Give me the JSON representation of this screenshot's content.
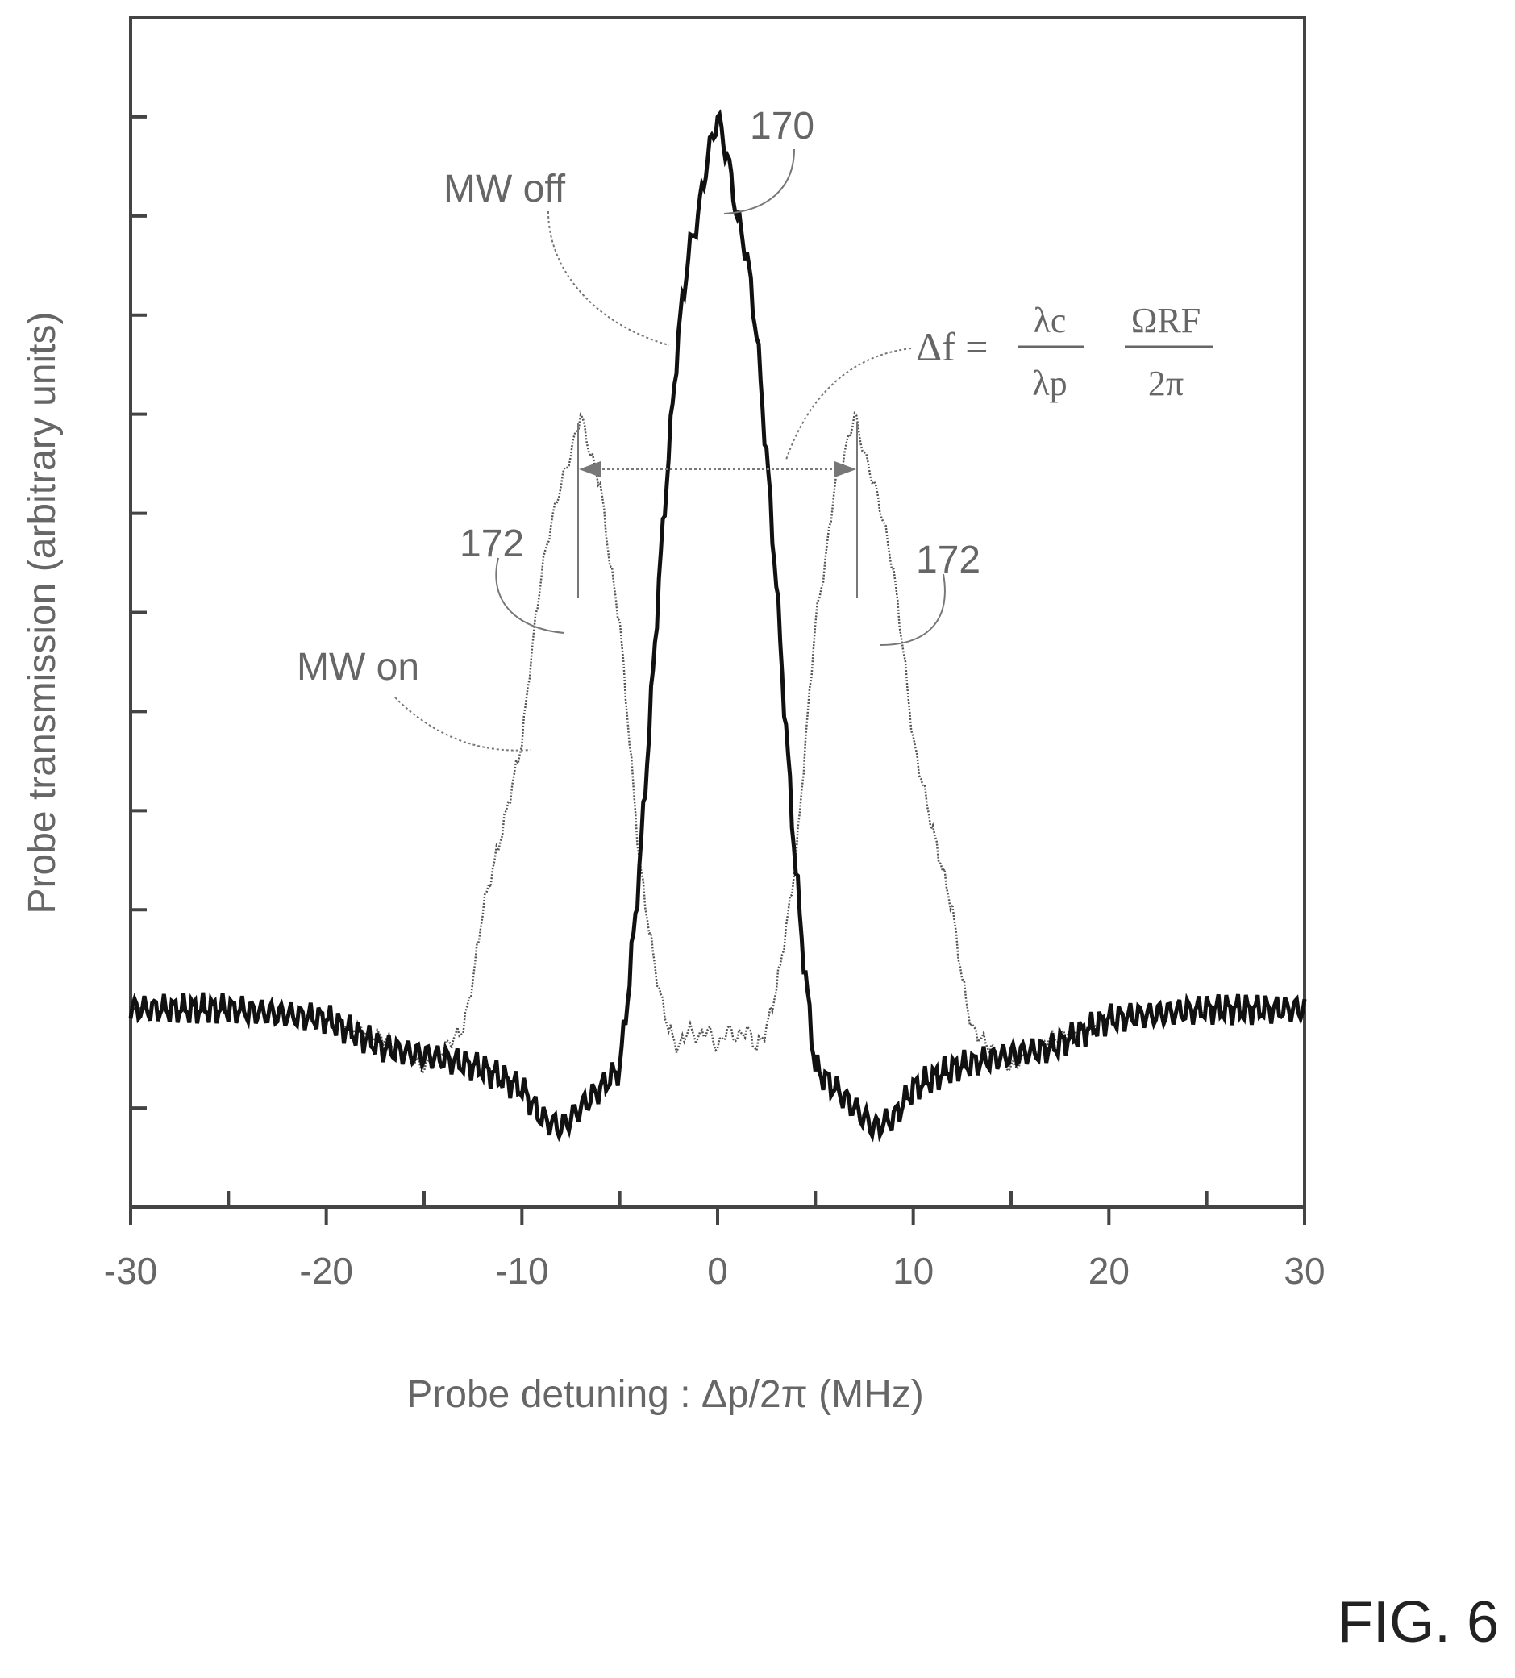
{
  "chart_data": {
    "type": "line",
    "title": "",
    "xlabel": "Probe detuning : Δp/2π (MHz)",
    "ylabel": "Probe transmission (arbitrary units)",
    "xlim": [
      -30,
      30
    ],
    "xticks": [
      -30,
      -20,
      -10,
      0,
      10,
      20,
      30
    ],
    "xtick_labels": [
      "-30",
      "-20",
      "-10",
      "0",
      "10",
      "20",
      "30"
    ],
    "ylim": [
      -2,
      10
    ],
    "ytick_count": 12,
    "grid": false,
    "series": [
      {
        "name": "MW off",
        "color": "#111111",
        "x": [
          -30,
          -25,
          -20,
          -17,
          -14,
          -12,
          -10,
          -9,
          -8,
          -7,
          -6,
          -5,
          -4.5,
          -4,
          -3.5,
          -3,
          -2.5,
          -2,
          -1.5,
          -1,
          -0.5,
          0,
          0.5,
          1,
          1.5,
          2,
          2.5,
          3,
          3.5,
          4,
          4.5,
          5,
          6,
          7,
          8,
          9,
          10,
          12,
          14,
          17,
          20,
          25,
          30
        ],
        "y": [
          0,
          0,
          -0.1,
          -0.4,
          -0.5,
          -0.6,
          -0.8,
          -1.1,
          -1.2,
          -1.0,
          -0.8,
          -0.6,
          0.3,
          1.4,
          2.8,
          4.3,
          5.6,
          6.8,
          7.6,
          8.0,
          8.6,
          9.0,
          8.6,
          8.0,
          7.6,
          6.8,
          5.6,
          4.3,
          2.8,
          1.4,
          0.3,
          -0.6,
          -0.8,
          -1.0,
          -1.2,
          -1.1,
          -0.8,
          -0.6,
          -0.5,
          -0.4,
          -0.1,
          0,
          0
        ]
      },
      {
        "name": "MW on",
        "color": "#555555",
        "x": [
          -30,
          -25,
          -20,
          -17,
          -15,
          -14,
          -13,
          -12.5,
          -12,
          -11,
          -10,
          -9.5,
          -9,
          -8.5,
          -8,
          -7.5,
          -7,
          -6.5,
          -6,
          -5.5,
          -5,
          -4.5,
          -4,
          -3.5,
          -3,
          -2.5,
          -2,
          -1.5,
          -1,
          -0.5,
          0,
          0.5,
          1,
          1.5,
          2,
          2.5,
          3,
          3.5,
          4,
          4.5,
          5,
          5.5,
          6,
          6.5,
          7,
          7.5,
          8,
          8.5,
          9,
          9.5,
          10,
          11,
          12,
          12.5,
          13,
          14,
          15,
          17,
          20,
          25,
          30
        ],
        "y": [
          0,
          0,
          -0.1,
          -0.3,
          -0.6,
          -0.4,
          -0.2,
          0.3,
          1.0,
          1.8,
          2.7,
          3.6,
          4.4,
          4.9,
          5.3,
          5.6,
          6.0,
          5.6,
          5.3,
          4.5,
          3.9,
          2.7,
          1.5,
          0.8,
          0.2,
          -0.2,
          -0.4,
          -0.2,
          -0.3,
          -0.2,
          -0.4,
          -0.2,
          -0.3,
          -0.2,
          -0.4,
          -0.2,
          0.2,
          0.8,
          1.5,
          2.7,
          3.9,
          4.5,
          5.3,
          5.6,
          6.0,
          5.6,
          5.3,
          4.9,
          4.4,
          3.6,
          2.7,
          1.8,
          1.0,
          0.3,
          -0.2,
          -0.4,
          -0.6,
          -0.3,
          -0.1,
          0,
          0
        ]
      }
    ],
    "annotations": {
      "mw_off_label": "MW off",
      "mw_on_label": "MW on",
      "peak_170": "170",
      "peak_172_left": "172",
      "peak_172_right": "172",
      "formula_lhs": "Δf =",
      "formula_num1": "λc",
      "formula_den1": "λp",
      "formula_num2": "ΩRF",
      "formula_den2": "2π"
    }
  },
  "figure_label": "FIG. 6"
}
